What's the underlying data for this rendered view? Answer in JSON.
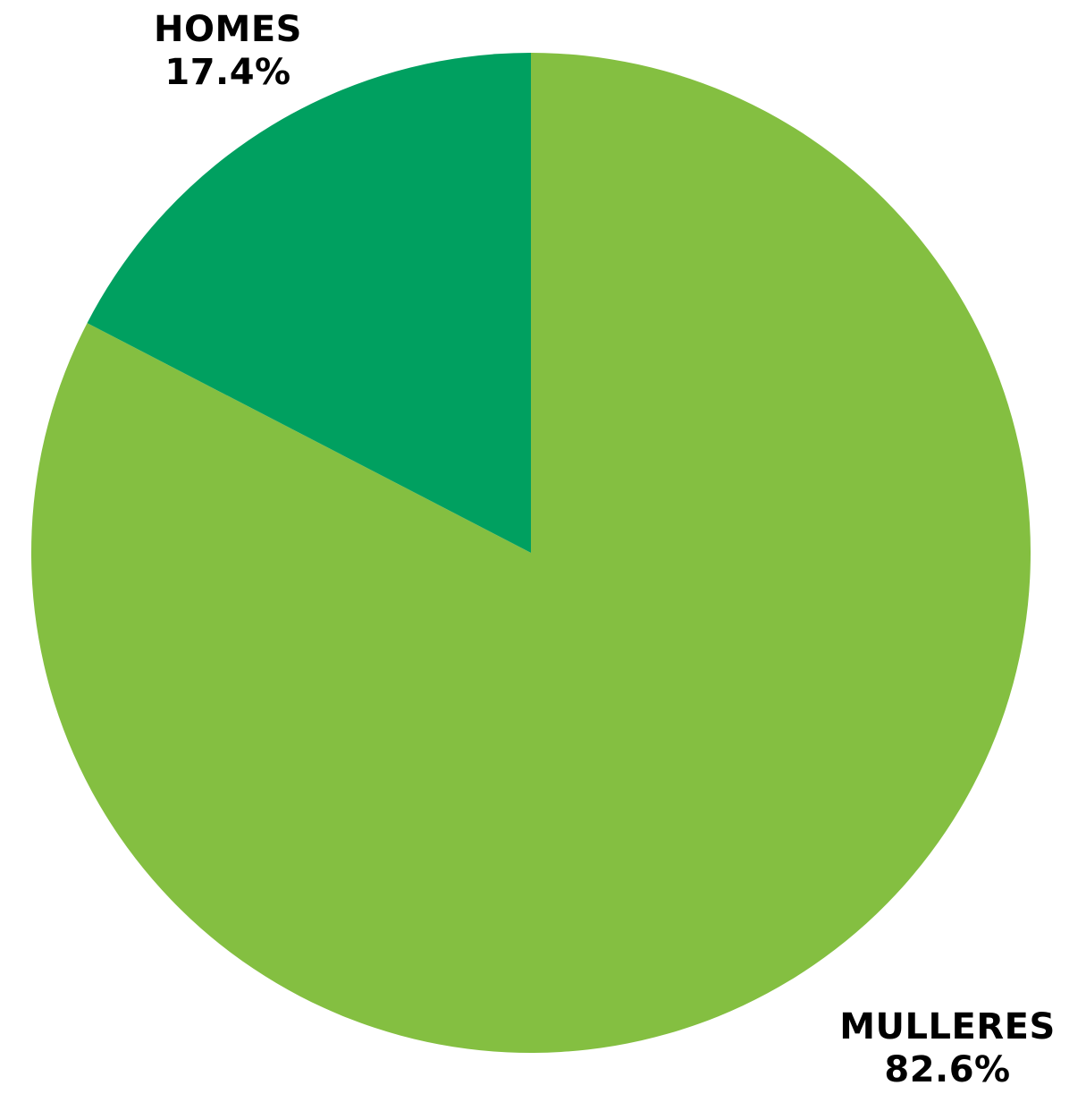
{
  "chart_data": {
    "type": "pie",
    "title": "",
    "slices": [
      {
        "label": "MULLERES",
        "value": 82.6,
        "value_label": "82.6%",
        "color": "#84bf41"
      },
      {
        "label": "HOMES",
        "value": 17.4,
        "value_label": "17.4%",
        "color": "#00a060"
      }
    ],
    "start_angle": "12 o'clock",
    "direction": "clockwise",
    "legend": "none"
  }
}
